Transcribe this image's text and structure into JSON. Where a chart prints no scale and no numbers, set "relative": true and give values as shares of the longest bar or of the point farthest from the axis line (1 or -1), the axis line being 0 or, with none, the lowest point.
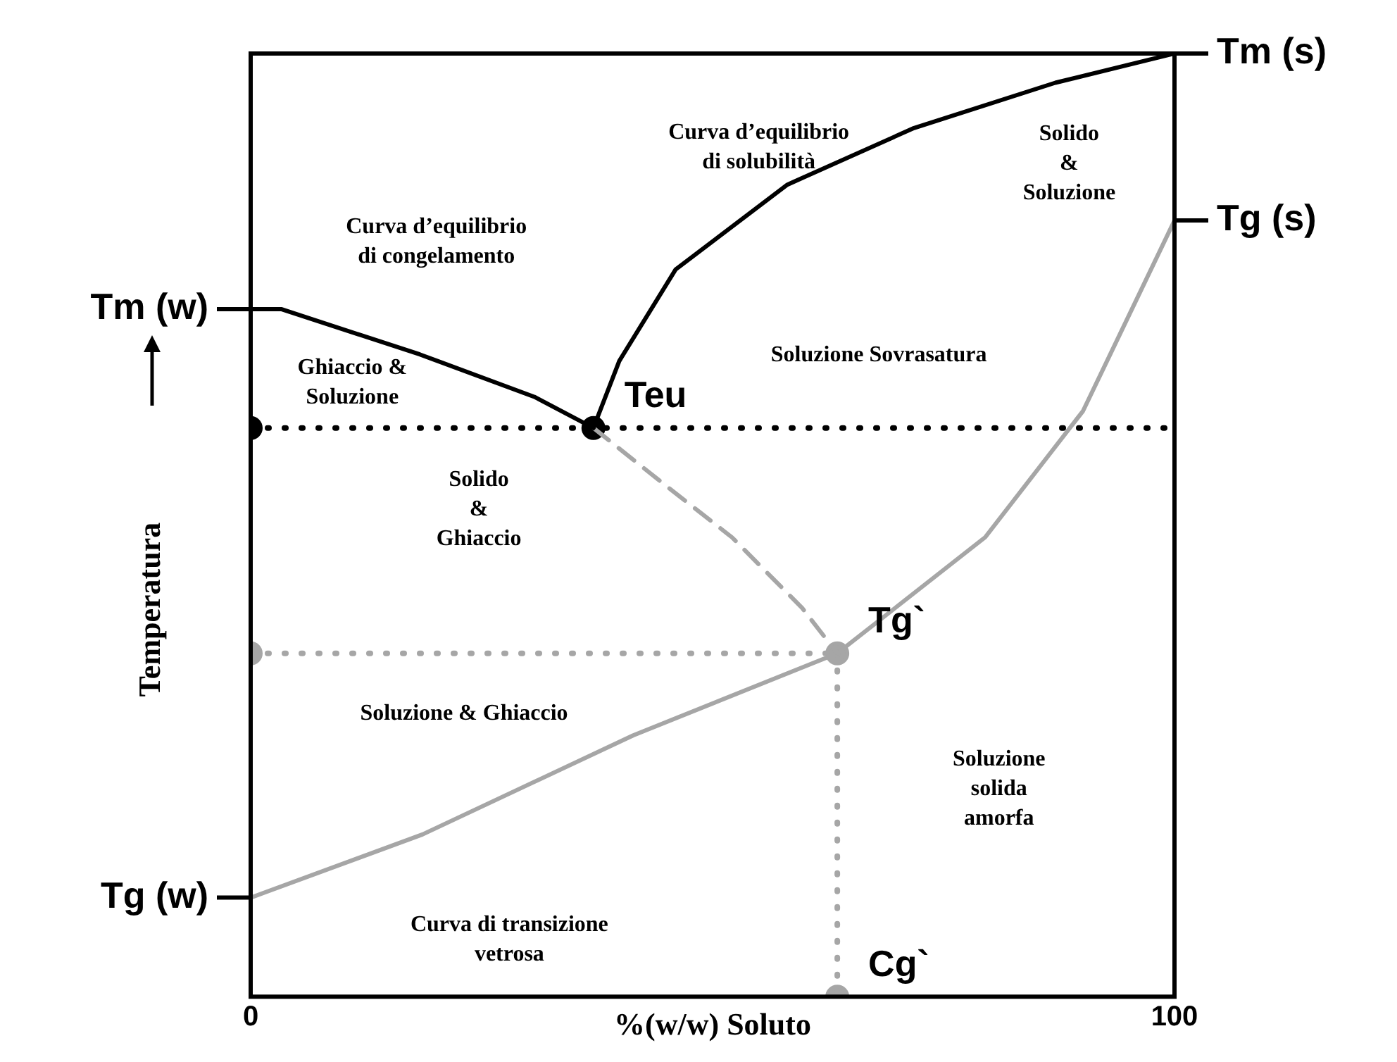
{
  "chart_data": {
    "type": "line",
    "relative": true,
    "xlim": [
      0,
      100
    ],
    "xticks": [
      0,
      100
    ],
    "xlabel": "%(w/w) Soluto",
    "ylabel": "Temperatura",
    "legend": false,
    "series": [
      {
        "color": "#000000",
        "line_style": "solid",
        "marker": "none",
        "x": [
          0,
          3.3,
          18.3,
          30.7,
          37.1
        ],
        "values": [
          0.729,
          0.729,
          0.681,
          0.636,
          0.603
        ]
      },
      {
        "color": "#000000",
        "line_style": "solid",
        "marker": "none",
        "x": [
          37.1,
          39.9,
          46.0,
          58.1,
          71.8,
          87.1,
          100
        ],
        "values": [
          0.603,
          0.674,
          0.771,
          0.861,
          0.921,
          0.969,
          1
        ]
      },
      {
        "color": "#a6a6a6",
        "line_style": "dashed",
        "marker": "none",
        "x": [
          37.1,
          44.4,
          52.1,
          59.7,
          63.5
        ],
        "values": [
          0.603,
          0.546,
          0.487,
          0.412,
          0.364
        ]
      },
      {
        "color": "#a6a6a6",
        "line_style": "solid",
        "marker": "none",
        "x": [
          0,
          18.6,
          41.4,
          63.5,
          79.5,
          90.1,
          100
        ],
        "values": [
          0.105,
          0.172,
          0.277,
          0.364,
          0.487,
          0.621,
          0.823
        ]
      },
      {
        "color": "#000000",
        "line_style": "dotted",
        "marker": "none",
        "x": [
          0,
          100
        ],
        "values": [
          0.603,
          0.603
        ]
      },
      {
        "color": "#a6a6a6",
        "line_style": "dotted",
        "marker": "none",
        "x": [
          0,
          63.5
        ],
        "values": [
          0.364,
          0.364
        ]
      },
      {
        "color": "#a6a6a6",
        "line_style": "dotted",
        "marker": "none",
        "x": [
          63.5,
          63.5
        ],
        "values": [
          0.364,
          0
        ]
      },
      {
        "type": "scatter",
        "color": "#000000",
        "marker": "circle",
        "x": [
          0,
          37.1
        ],
        "values": [
          0.603,
          0.603
        ]
      },
      {
        "type": "scatter",
        "color": "#a6a6a6",
        "marker": "circle",
        "x": [
          0,
          63.5,
          63.5
        ],
        "values": [
          0.364,
          0.364,
          0
        ]
      }
    ],
    "annotations": [
      {
        "text": "Tm (w)",
        "x": 0,
        "y": 0.729
      },
      {
        "text": "Tg (w)",
        "x": 0,
        "y": 0.105
      },
      {
        "text": "Tm (s)",
        "x": 100,
        "y": 1
      },
      {
        "text": "Tg (s)",
        "x": 100,
        "y": 0.823
      },
      "Curva d’equilibrio\ndi congelamento",
      "Curva d’equilibrio\ndi solubilità",
      "Solido\n&\nSoluzione",
      "Ghiaccio &\nSoluzione",
      "Solido\n&\nGhiaccio",
      "Soluzione Sovrasatura",
      "Soluzione & Ghiaccio",
      "Curva di transizione\nvetrosa",
      "Soluzione\nsolida\namorfa",
      {
        "text": "Teu",
        "x": 37.1,
        "y": 0.603
      },
      {
        "text": "Tg`",
        "x": 63.5,
        "y": 0.364
      },
      {
        "text": "Cg`",
        "x": 63.5,
        "y": 0
      }
    ]
  }
}
